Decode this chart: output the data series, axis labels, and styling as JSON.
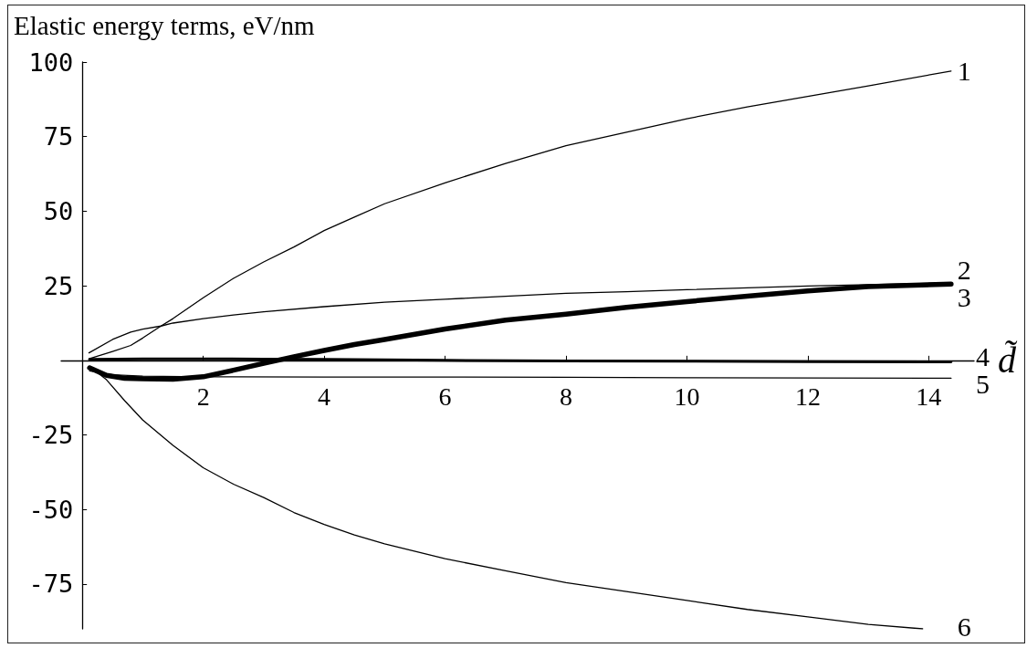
{
  "chart_data": {
    "type": "line",
    "ylabel": "Elastic energy terms, eV/nm",
    "xlabel": "d̃",
    "xlim": [
      -0.35,
      14.75
    ],
    "ylim": [
      -90,
      100
    ],
    "xticks": [
      2,
      4,
      6,
      8,
      10,
      12,
      14
    ],
    "yticks": [
      -75,
      -50,
      -25,
      25,
      50,
      75,
      100
    ],
    "grid": false,
    "legend": false,
    "marker": "none",
    "line_style": "solid",
    "series": [
      {
        "name": "1",
        "color": "#000000",
        "x": [
          0.11,
          0.5,
          0.8,
          1,
          1.3,
          1.5,
          2,
          2.5,
          3,
          3.5,
          4,
          4.5,
          5,
          6,
          7,
          8,
          9,
          10,
          11,
          12,
          13,
          14.37
        ],
        "values": [
          0.5,
          3,
          5,
          7.5,
          11.5,
          14,
          21,
          27.5,
          33,
          38,
          43.5,
          48,
          52.5,
          59.5,
          66,
          72,
          76.5,
          81,
          85,
          88.5,
          92,
          97
        ]
      },
      {
        "name": "2",
        "color": "#000000",
        "x": [
          0.11,
          0.5,
          0.8,
          1,
          1.3,
          1.5,
          2,
          2.5,
          3,
          4,
          5,
          6,
          7,
          8,
          9,
          10,
          11,
          12,
          13,
          14.37
        ],
        "values": [
          2.5,
          7,
          9.5,
          10.5,
          11.5,
          12.5,
          14,
          15.2,
          16.3,
          18,
          19.5,
          20.5,
          21.5,
          22.5,
          23,
          23.7,
          24.3,
          24.9,
          25.4,
          26
        ]
      },
      {
        "name": "3",
        "color": "#000000",
        "x": [
          0.12,
          0.4,
          0.7,
          1,
          1.5,
          2,
          2.5,
          3,
          3.5,
          4,
          4.5,
          5,
          6,
          7,
          8,
          9,
          10,
          11,
          12,
          13,
          14.37
        ],
        "values": [
          -2.5,
          -5,
          -6,
          -6.2,
          -6.3,
          -5.5,
          -3.3,
          -1,
          1.2,
          3.3,
          5.3,
          7,
          10.5,
          13.5,
          15.5,
          17.8,
          19.7,
          21.5,
          23.3,
          24.7,
          25.6
        ]
      },
      {
        "name": "4",
        "color": "#000000",
        "x": [
          0.12,
          1,
          2,
          3,
          4,
          6,
          8,
          10,
          12,
          14.37
        ],
        "values": [
          0.3,
          0.5,
          0.5,
          0.4,
          0.3,
          0,
          -0.2,
          -0.3,
          -0.4,
          -0.5
        ]
      },
      {
        "name": "5",
        "color": "#000000",
        "x": [
          0.12,
          0.5,
          1,
          2,
          4,
          6,
          8,
          10,
          12,
          14.37
        ],
        "values": [
          -3.5,
          -4.8,
          -5.3,
          -5.5,
          -5.6,
          -5.6,
          -5.7,
          -5.8,
          -5.9,
          -6
        ]
      },
      {
        "name": "6",
        "color": "#000000",
        "x": [
          0.12,
          0.4,
          0.7,
          1,
          1.5,
          2,
          2.5,
          3,
          3.5,
          4,
          4.5,
          5,
          6,
          7,
          8,
          9,
          10,
          11,
          12,
          13,
          13.9
        ],
        "values": [
          -2,
          -6.5,
          -13.5,
          -20,
          -28.5,
          -36,
          -41.5,
          -46,
          -51,
          -55,
          -58.5,
          -61.5,
          -66.5,
          -70.5,
          -74.5,
          -77.5,
          -80.5,
          -83.5,
          -86,
          -88.5,
          -90
        ]
      }
    ]
  }
}
